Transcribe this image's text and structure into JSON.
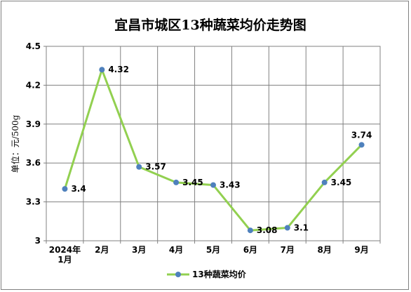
{
  "chart_data": {
    "type": "line",
    "title": "宜昌市城区13种蔬菜均价走势图",
    "ylabel": "单位：元/500g",
    "xlabel": "",
    "categories": [
      [
        "2024年",
        "1月"
      ],
      [
        "2月"
      ],
      [
        "3月"
      ],
      [
        "4月"
      ],
      [
        "5月"
      ],
      [
        "6月"
      ],
      [
        "7月"
      ],
      [
        "8月"
      ],
      [
        "9月"
      ]
    ],
    "yticks": [
      "3",
      "3.3",
      "3.6",
      "3.9",
      "4.2",
      "4.5"
    ],
    "ylim": [
      3,
      4.5
    ],
    "grid": true,
    "legend_position": "bottom",
    "series": [
      {
        "name": "13种蔬菜均价",
        "values": [
          3.4,
          4.32,
          3.57,
          3.45,
          3.43,
          3.08,
          3.1,
          3.45,
          3.74
        ],
        "labels": [
          "3.4",
          "4.32",
          "3.57",
          "3.45",
          "3.43",
          "3.08",
          "3.1",
          "3.45",
          "3.74"
        ],
        "line_color": "#92d050",
        "marker_color": "#4f81bd"
      }
    ]
  }
}
